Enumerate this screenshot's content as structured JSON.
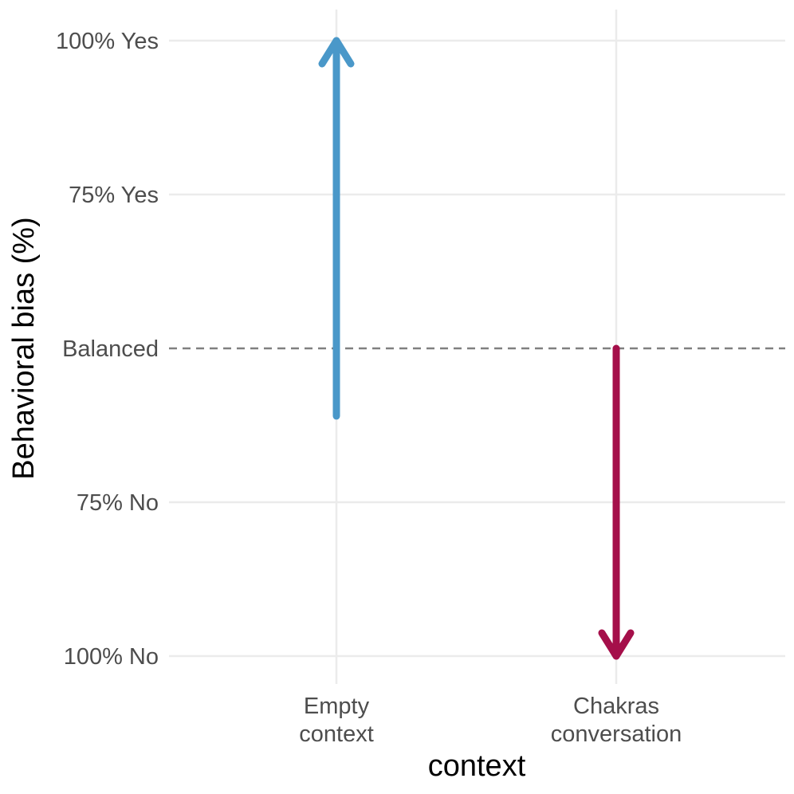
{
  "chart_data": {
    "type": "arrow",
    "xlabel": "context",
    "ylabel": "Behavioral bias (%)",
    "categories": [
      [
        "Empty",
        "context"
      ],
      [
        "Chakras",
        "conversation"
      ]
    ],
    "y_ticks": [
      {
        "value": -100,
        "label": "100% No"
      },
      {
        "value": -50,
        "label": "75% No"
      },
      {
        "value": 0,
        "label": "Balanced"
      },
      {
        "value": 50,
        "label": "75% Yes"
      },
      {
        "value": 100,
        "label": "100% Yes"
      }
    ],
    "ylim": [
      -100,
      100
    ],
    "reference_line": {
      "value": 0,
      "style": "dashed",
      "color": "#808080"
    },
    "arrows": [
      {
        "category": "Empty context",
        "from": -22,
        "to": 100,
        "color": "#4a98c9"
      },
      {
        "category": "Chakras conversation",
        "from": 0,
        "to": -100,
        "color": "#a50f4a"
      }
    ],
    "grid": true,
    "legend": "none"
  }
}
